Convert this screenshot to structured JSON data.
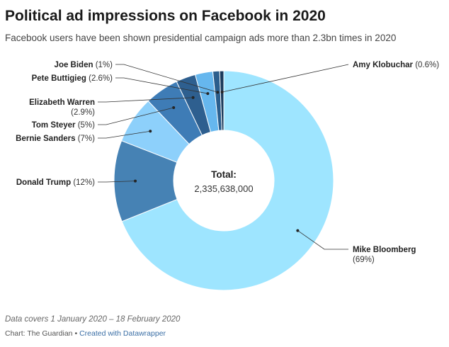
{
  "header": {
    "title": "Political ad impressions on Facebook in 2020",
    "subtitle": "Facebook users have been shown presidential campaign ads more than 2.3bn times in 2020"
  },
  "chart_data": {
    "type": "donut",
    "center_label": "Total:",
    "center_value": "2,335,638,000",
    "slices": [
      {
        "name": "Mike Bloomberg",
        "percent_label": "(69%)",
        "value": 69,
        "color": "#9ee5ff"
      },
      {
        "name": "Donald Trump",
        "percent_label": "(12%)",
        "value": 12,
        "color": "#4682b4"
      },
      {
        "name": "Bernie Sanders",
        "percent_label": "(7%)",
        "value": 7,
        "color": "#8dd0fb"
      },
      {
        "name": "Tom Steyer",
        "percent_label": "(5%)",
        "value": 5,
        "color": "#3e7cb6"
      },
      {
        "name": "Elizabeth Warren",
        "percent_label": "(2.9%)",
        "value": 2.9,
        "color": "#2e5f8f"
      },
      {
        "name": "Pete Buttigieg",
        "percent_label": "(2.6%)",
        "value": 2.6,
        "color": "#66b7ee"
      },
      {
        "name": "Joe Biden",
        "percent_label": "(1%)",
        "value": 1,
        "color": "#2b5e8d"
      },
      {
        "name": "Amy Klobuchar",
        "percent_label": "(0.6%)",
        "value": 0.6,
        "color": "#1a3b5c"
      }
    ]
  },
  "footer": {
    "note": "Data covers 1 January 2020 – 18 February 2020",
    "source": "Chart: The Guardian",
    "separator": "•",
    "credit_link": "Created with Datawrapper"
  }
}
